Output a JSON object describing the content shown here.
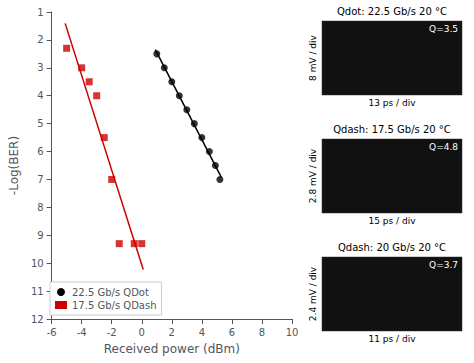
{
  "chart_data": {
    "type": "scatter",
    "xlabel": "Received power (dBm)",
    "ylabel": "-Log(BER)",
    "xlim": [
      -6,
      10
    ],
    "ylim": [
      12,
      1
    ],
    "xticks": [
      -6,
      -4,
      -2,
      0,
      2,
      4,
      6,
      8,
      10
    ],
    "yticks": [
      1,
      2,
      3,
      4,
      5,
      6,
      7,
      8,
      9,
      10,
      11,
      12
    ],
    "grid": false,
    "legend": "lower left",
    "series": [
      {
        "name": "22.5 Gb/s QDot",
        "color": "#000000",
        "marker": "circle",
        "line_style": "solid",
        "x": [
          1.0,
          1.5,
          2.0,
          2.5,
          3.0,
          3.5,
          4.0,
          4.5,
          4.9,
          5.2
        ],
        "values": [
          2.5,
          3.0,
          3.5,
          4.0,
          4.5,
          5.0,
          5.5,
          6.0,
          6.5,
          7.0
        ],
        "fit_x": [
          0.9,
          5.3
        ],
        "fit_y": [
          2.347,
          6.924
        ]
      },
      {
        "name": "17.5 Gb/s QDash",
        "color": "#cc0000",
        "marker": "square",
        "line_style": "solid",
        "x": [
          -5.0,
          -4.0,
          -3.5,
          -3.0,
          -2.5,
          -2.0,
          -1.5,
          -0.5,
          0.0
        ],
        "values": [
          2.3,
          3.0,
          3.5,
          4.0,
          5.5,
          7.0,
          9.3,
          9.3,
          9.3
        ],
        "fit_x": [
          -5.1,
          0.1
        ],
        "fit_y": [
          1.407,
          10.227
        ]
      }
    ],
    "insets": [
      {
        "title": "Qdot: 22.5 Gb/s 20 °C",
        "ylabel": "8 mV / div",
        "xlabel": "13 ps / div",
        "annotation": "Q=3.5"
      },
      {
        "title": "Qdash: 17.5 Gb/s 20 °C",
        "ylabel": "2.8 mV / div",
        "xlabel": "15 ps / div",
        "annotation": "Q=4.8"
      },
      {
        "title": "Qdash: 20 Gb/s 20 °C",
        "ylabel": "2.4 mV / div",
        "xlabel": "11 ps / div",
        "annotation": "Q=3.7"
      }
    ]
  }
}
